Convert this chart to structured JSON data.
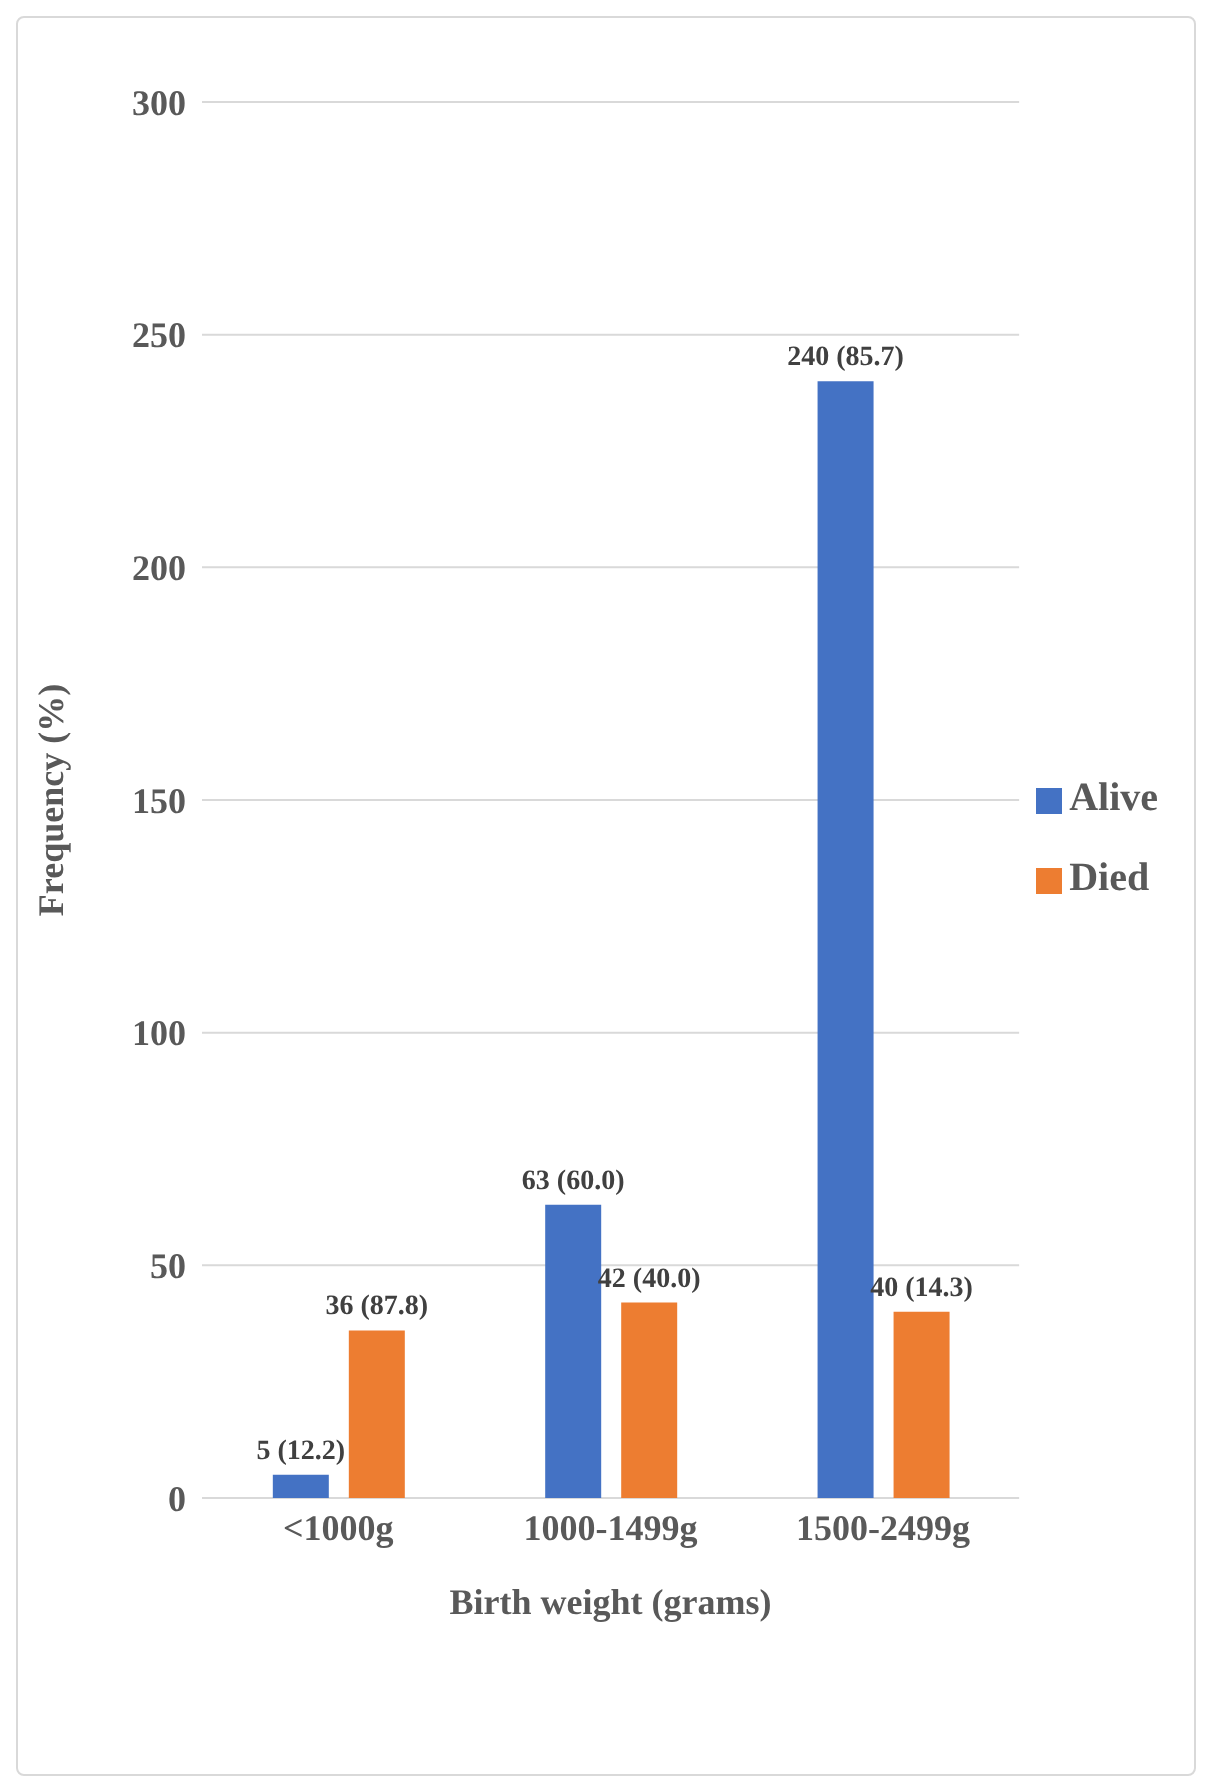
{
  "chart_data": {
    "type": "bar",
    "xlabel": "Birth weight (grams)",
    "ylabel": "Frequency (%)",
    "categories": [
      "<1000g",
      "1000-1499g",
      "1500-2499g"
    ],
    "series": [
      {
        "name": "Alive",
        "color": "#4472c4",
        "values": [
          5,
          63,
          240
        ],
        "value_labels": [
          "5 (12.2)",
          "63 (60.0)",
          "240 (85.7)"
        ]
      },
      {
        "name": "Died",
        "color": "#ed7d31",
        "values": [
          36,
          42,
          40
        ],
        "value_labels": [
          "36 (87.8)",
          "42 (40.0)",
          "40 (14.3)"
        ]
      }
    ],
    "ylim": [
      0,
      300
    ],
    "yticks": [
      0,
      50,
      100,
      150,
      200,
      250,
      300
    ],
    "grid": "y",
    "legend": "right"
  }
}
